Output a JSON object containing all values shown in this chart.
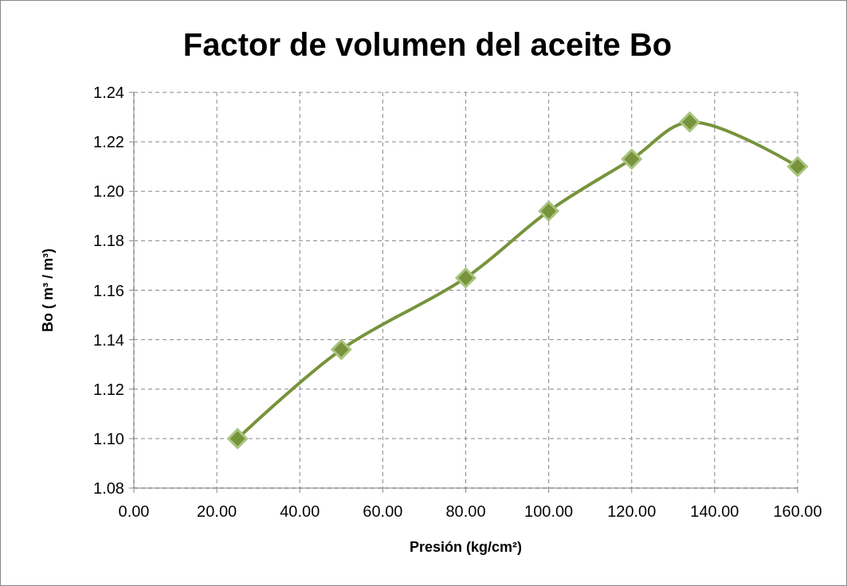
{
  "chart_data": {
    "type": "line",
    "title": "Factor de volumen del aceite Bo",
    "xlabel": "Presión (kg/cm²)",
    "ylabel": "Bo ( m³ / m³)",
    "x": [
      25,
      50,
      80,
      100,
      120,
      134,
      160
    ],
    "series": [
      {
        "color": "#77933c",
        "values": [
          1.1,
          1.136,
          1.165,
          1.192,
          1.213,
          1.228,
          1.21
        ]
      }
    ],
    "xlim": [
      0,
      160
    ],
    "ylim": [
      1.08,
      1.24
    ],
    "xticks": [
      {
        "value": 0,
        "label": "0.00"
      },
      {
        "value": 20,
        "label": "20.00"
      },
      {
        "value": 40,
        "label": "40.00"
      },
      {
        "value": 60,
        "label": "60.00"
      },
      {
        "value": 80,
        "label": "80.00"
      },
      {
        "value": 100,
        "label": "100.00"
      },
      {
        "value": 120,
        "label": "120.00"
      },
      {
        "value": 140,
        "label": "140.00"
      },
      {
        "value": 160,
        "label": "160.00"
      }
    ],
    "yticks": [
      {
        "value": 1.08,
        "label": "1.08"
      },
      {
        "value": 1.1,
        "label": "1.10"
      },
      {
        "value": 1.12,
        "label": "1.12"
      },
      {
        "value": 1.14,
        "label": "1.14"
      },
      {
        "value": 1.16,
        "label": "1.16"
      },
      {
        "value": 1.18,
        "label": "1.18"
      },
      {
        "value": 1.2,
        "label": "1.20"
      },
      {
        "value": 1.22,
        "label": "1.22"
      },
      {
        "value": 1.24,
        "label": "1.24"
      }
    ],
    "grid": true,
    "marker": "diamond",
    "line_style": "solid"
  }
}
